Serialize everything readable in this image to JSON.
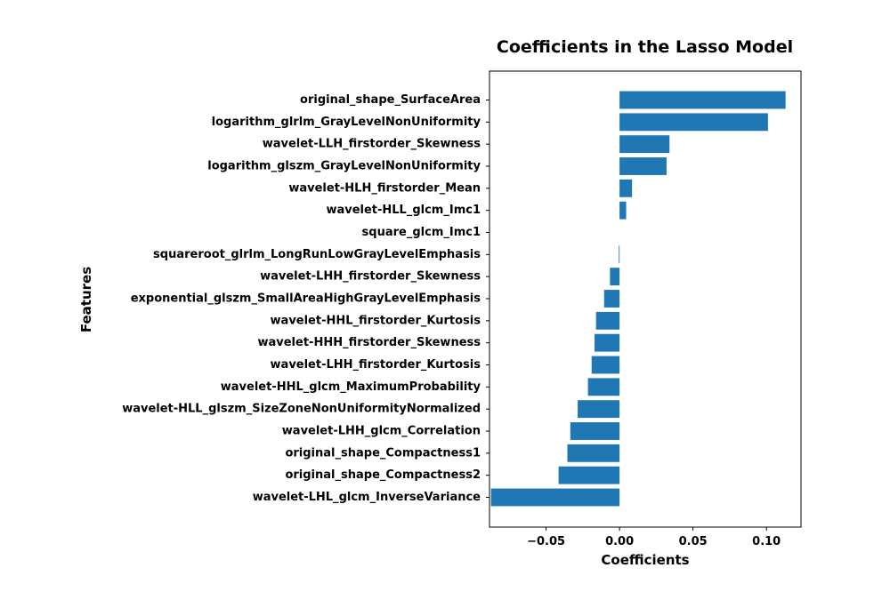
{
  "chart_data": {
    "type": "bar",
    "orientation": "horizontal",
    "title": "Coefficients in the Lasso Model",
    "xlabel": "Coefficients",
    "ylabel": "Features",
    "xlim": [
      -0.0885,
      0.1235
    ],
    "xticks": [
      -0.05,
      0.0,
      0.05,
      0.1
    ],
    "xtick_labels": [
      "−0.05",
      "0.00",
      "0.05",
      "0.10"
    ],
    "grid": false,
    "bar_color": "#1f77b4",
    "categories": [
      "original_shape_SurfaceArea",
      "logarithm_glrlm_GrayLevelNonUniformity",
      "wavelet-LLH_firstorder_Skewness",
      "logarithm_glszm_GrayLevelNonUniformity",
      "wavelet-HLH_firstorder_Mean",
      "wavelet-HLL_glcm_Imc1",
      "square_glcm_Imc1",
      "squareroot_glrlm_LongRunLowGrayLevelEmphasis",
      "wavelet-LHH_firstorder_Skewness",
      "exponential_glszm_SmallAreaHighGrayLevelEmphasis",
      "wavelet-HHL_firstorder_Kurtosis",
      "wavelet-HHH_firstorder_Skewness",
      "wavelet-LHH_firstorder_Kurtosis",
      "wavelet-HHL_glcm_MaximumProbability",
      "wavelet-HLL_glszm_SizeZoneNonUniformityNormalized",
      "wavelet-LHH_glcm_Correlation",
      "original_shape_Compactness1",
      "original_shape_Compactness2",
      "wavelet-LHL_glcm_InverseVariance"
    ],
    "values": [
      0.113,
      0.101,
      0.034,
      0.032,
      0.0085,
      0.0045,
      0.0,
      -0.0005,
      -0.0065,
      -0.0105,
      -0.016,
      -0.017,
      -0.019,
      -0.0215,
      -0.0285,
      -0.0335,
      -0.0355,
      -0.0415,
      -0.0875
    ]
  }
}
